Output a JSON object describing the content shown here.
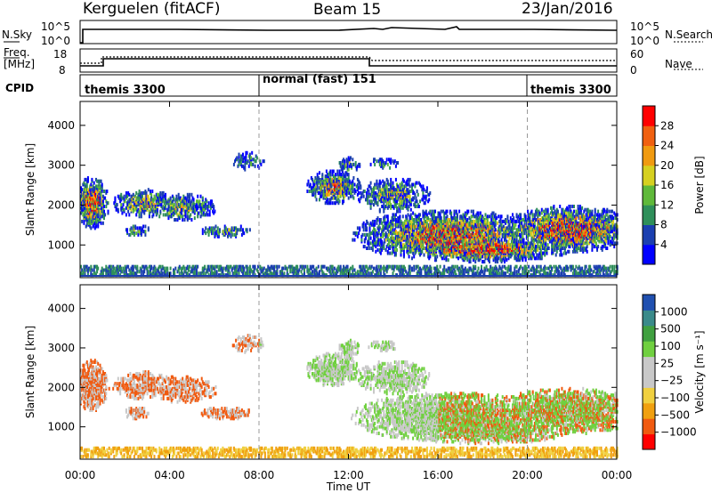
{
  "header": {
    "station": "Kerguelen (fitACF)",
    "beam": "Beam 15",
    "date": "23/Jan/2016"
  },
  "nsky_panel": {
    "left_label": "N.Sky",
    "left_ticks": [
      "10^5",
      "10^0"
    ],
    "right_ticks": [
      "10^5",
      "10^0"
    ],
    "right_label": "N.Search"
  },
  "freq_panel": {
    "left_label_1": "Freq.",
    "left_label_2": "[MHz]",
    "left_ticks": [
      "18",
      "8"
    ],
    "right_ticks": [
      "60",
      "0"
    ],
    "right_label": "Nave"
  },
  "cpid_panel": {
    "label": "CPID",
    "segments": [
      {
        "name": "themis 3300",
        "start_hour": 0,
        "end_hour": 8
      },
      {
        "name": "normal (fast) 151",
        "start_hour": 8,
        "end_hour": 20
      },
      {
        "name": "themis 3300",
        "start_hour": 20,
        "end_hour": 24
      }
    ]
  },
  "chart_data": [
    {
      "type": "heatmap",
      "name": "Power",
      "ylabel": "Slant Range [km]",
      "ylim": [
        180,
        4600
      ],
      "yticks": [
        1000,
        2000,
        3000,
        4000
      ],
      "xlim": [
        0,
        24
      ],
      "xtick_labels": [
        "00:00",
        "04:00",
        "08:00",
        "12:00",
        "16:00",
        "20:00",
        "00:00"
      ],
      "colorbar": {
        "label": "Power [dB]",
        "ticks": [
          "28",
          "24",
          "20",
          "16",
          "12",
          "8",
          "4"
        ],
        "colors": [
          "#0000ff",
          "#1b3fb0",
          "#2f8f5a",
          "#5fb93a",
          "#d6d020",
          "#f09a10",
          "#f06010",
          "#ff0000"
        ]
      },
      "dashed_lines_hours": [
        8,
        20
      ]
    },
    {
      "type": "heatmap",
      "name": "Velocity",
      "ylabel": "Slant Range [km]",
      "ylim": [
        180,
        4600
      ],
      "yticks": [
        1000,
        2000,
        3000,
        4000
      ],
      "xlim": [
        0,
        24
      ],
      "xtick_labels": [
        "00:00",
        "04:00",
        "08:00",
        "12:00",
        "16:00",
        "20:00",
        "00:00"
      ],
      "xlabel": "Time UT",
      "colorbar": {
        "label": "Velocity [m s⁻¹]",
        "ticks": [
          "1000",
          "500",
          "100",
          "25",
          "−25",
          "−100",
          "−500",
          "−1000"
        ],
        "colors": [
          "#ff0000",
          "#f05a10",
          "#f0a010",
          "#f0d040",
          "#c8c8c8",
          "#c8c8c8",
          "#70d040",
          "#40a040",
          "#3a8a8a",
          "#2050b0"
        ]
      },
      "dashed_lines_hours": [
        8,
        20
      ]
    }
  ]
}
